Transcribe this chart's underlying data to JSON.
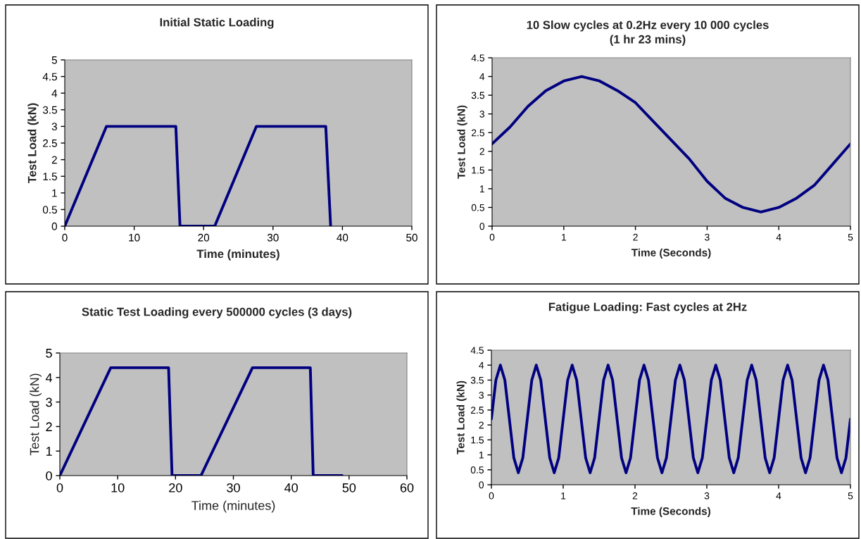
{
  "chart_data": [
    {
      "type": "line",
      "title": "Initial Static Loading",
      "xlabel": "Time (minutes)",
      "ylabel": "Test Load (kN)",
      "series": [
        {
          "color": "#000080",
          "x": [
            0,
            6,
            16,
            16.6,
            21.6,
            27.6,
            37.6,
            38.3
          ],
          "values": [
            0,
            3,
            3,
            0,
            0,
            3,
            3,
            0
          ]
        }
      ],
      "xlim": [
        0,
        50
      ],
      "xticks": [
        0,
        10,
        20,
        30,
        40,
        50
      ],
      "ylim": [
        0,
        5
      ],
      "yticks": [
        0,
        0.5,
        1,
        1.5,
        2,
        2.5,
        3,
        3.5,
        4,
        4.5,
        5
      ],
      "grid": false,
      "legend": false,
      "marker": "none",
      "line_style": "solid"
    },
    {
      "type": "line",
      "title": "10 Slow cycles at 0.2Hz every 10 000 cycles\n(1 hr 23 mins)",
      "xlabel": "Time (Seconds)",
      "ylabel": "Test Load (kN)",
      "series": [
        {
          "color": "#000080",
          "x": [
            0,
            0.25,
            0.5,
            0.75,
            1,
            1.25,
            1.5,
            1.75,
            2,
            2.25,
            2.5,
            2.75,
            3,
            3.25,
            3.5,
            3.75,
            4,
            4.25,
            4.5,
            4.75,
            5
          ],
          "values": [
            2.2,
            2.65,
            3.2,
            3.62,
            3.88,
            4.0,
            3.88,
            3.62,
            3.3,
            2.8,
            2.3,
            1.8,
            1.2,
            0.75,
            0.5,
            0.38,
            0.5,
            0.75,
            1.1,
            1.65,
            2.2
          ]
        }
      ],
      "xlim": [
        0,
        5
      ],
      "xticks": [
        0,
        1,
        2,
        3,
        4,
        5
      ],
      "ylim": [
        0,
        4.5
      ],
      "yticks": [
        0,
        0.5,
        1,
        1.5,
        2,
        2.5,
        3,
        3.5,
        4,
        4.5
      ],
      "grid": false,
      "legend": false,
      "marker": "none",
      "line_style": "solid"
    },
    {
      "type": "line",
      "title": "Static Test Loading every 500000 cycles (3 days)",
      "xlabel": "Time (minutes)",
      "ylabel": "Test Load (kN)",
      "series": [
        {
          "color": "#000080",
          "x": [
            0,
            8.8,
            18.8,
            19.4,
            24.4,
            33.3,
            43.3,
            43.8,
            48.8
          ],
          "values": [
            0,
            4.4,
            4.4,
            0,
            0,
            4.4,
            4.4,
            0,
            0
          ]
        }
      ],
      "xlim": [
        0,
        60
      ],
      "xticks": [
        0,
        10,
        20,
        30,
        40,
        50,
        60
      ],
      "ylim": [
        0,
        5
      ],
      "yticks": [
        0,
        1,
        2,
        3,
        4,
        5
      ],
      "grid": false,
      "legend": false,
      "marker": "none",
      "line_style": "solid"
    },
    {
      "type": "line",
      "title": "Fatigue Loading: Fast cycles at 2Hz",
      "xlabel": "Time (Seconds)",
      "ylabel": "Test Load (kN)",
      "series": [
        {
          "color": "#000080",
          "x": [
            0,
            0.0625,
            0.125,
            0.1875,
            0.25,
            0.3125,
            0.375,
            0.4375,
            0.5,
            0.5625,
            0.625,
            0.6875,
            0.75,
            0.8125,
            0.875,
            0.9375,
            1,
            1.0625,
            1.125,
            1.1875,
            1.25,
            1.3125,
            1.375,
            1.4375,
            1.5,
            1.5625,
            1.625,
            1.6875,
            1.75,
            1.8125,
            1.875,
            1.9375,
            2,
            2.0625,
            2.125,
            2.1875,
            2.25,
            2.3125,
            2.375,
            2.4375,
            2.5,
            2.5625,
            2.625,
            2.6875,
            2.75,
            2.8125,
            2.875,
            2.9375,
            3,
            3.0625,
            3.125,
            3.1875,
            3.25,
            3.3125,
            3.375,
            3.4375,
            3.5,
            3.5625,
            3.625,
            3.6875,
            3.75,
            3.8125,
            3.875,
            3.9375,
            4,
            4.0625,
            4.125,
            4.1875,
            4.25,
            4.3125,
            4.375,
            4.4375,
            4.5,
            4.5625,
            4.625,
            4.6875,
            4.75,
            4.8125,
            4.875,
            4.9375,
            5
          ],
          "values": [
            2.2,
            3.5,
            4.0,
            3.5,
            2.2,
            0.9,
            0.4,
            0.9,
            2.2,
            3.5,
            4.0,
            3.5,
            2.2,
            0.9,
            0.4,
            0.9,
            2.2,
            3.5,
            4.0,
            3.5,
            2.2,
            0.9,
            0.4,
            0.9,
            2.2,
            3.5,
            4.0,
            3.5,
            2.2,
            0.9,
            0.4,
            0.9,
            2.2,
            3.5,
            4.0,
            3.5,
            2.2,
            0.9,
            0.4,
            0.9,
            2.2,
            3.5,
            4.0,
            3.5,
            2.2,
            0.9,
            0.4,
            0.9,
            2.2,
            3.5,
            4.0,
            3.5,
            2.2,
            0.9,
            0.4,
            0.9,
            2.2,
            3.5,
            4.0,
            3.5,
            2.2,
            0.9,
            0.4,
            0.9,
            2.2,
            3.5,
            4.0,
            3.5,
            2.2,
            0.9,
            0.4,
            0.9,
            2.2,
            3.5,
            4.0,
            3.5,
            2.2,
            0.9,
            0.4,
            0.9,
            2.2
          ]
        }
      ],
      "xlim": [
        0,
        5
      ],
      "xticks": [
        0,
        1,
        2,
        3,
        4,
        5
      ],
      "ylim": [
        0,
        4.5
      ],
      "yticks": [
        0,
        0.5,
        1,
        1.5,
        2,
        2.5,
        3,
        3.5,
        4,
        4.5
      ],
      "grid": false,
      "legend": false,
      "marker": "none",
      "line_style": "solid"
    }
  ]
}
